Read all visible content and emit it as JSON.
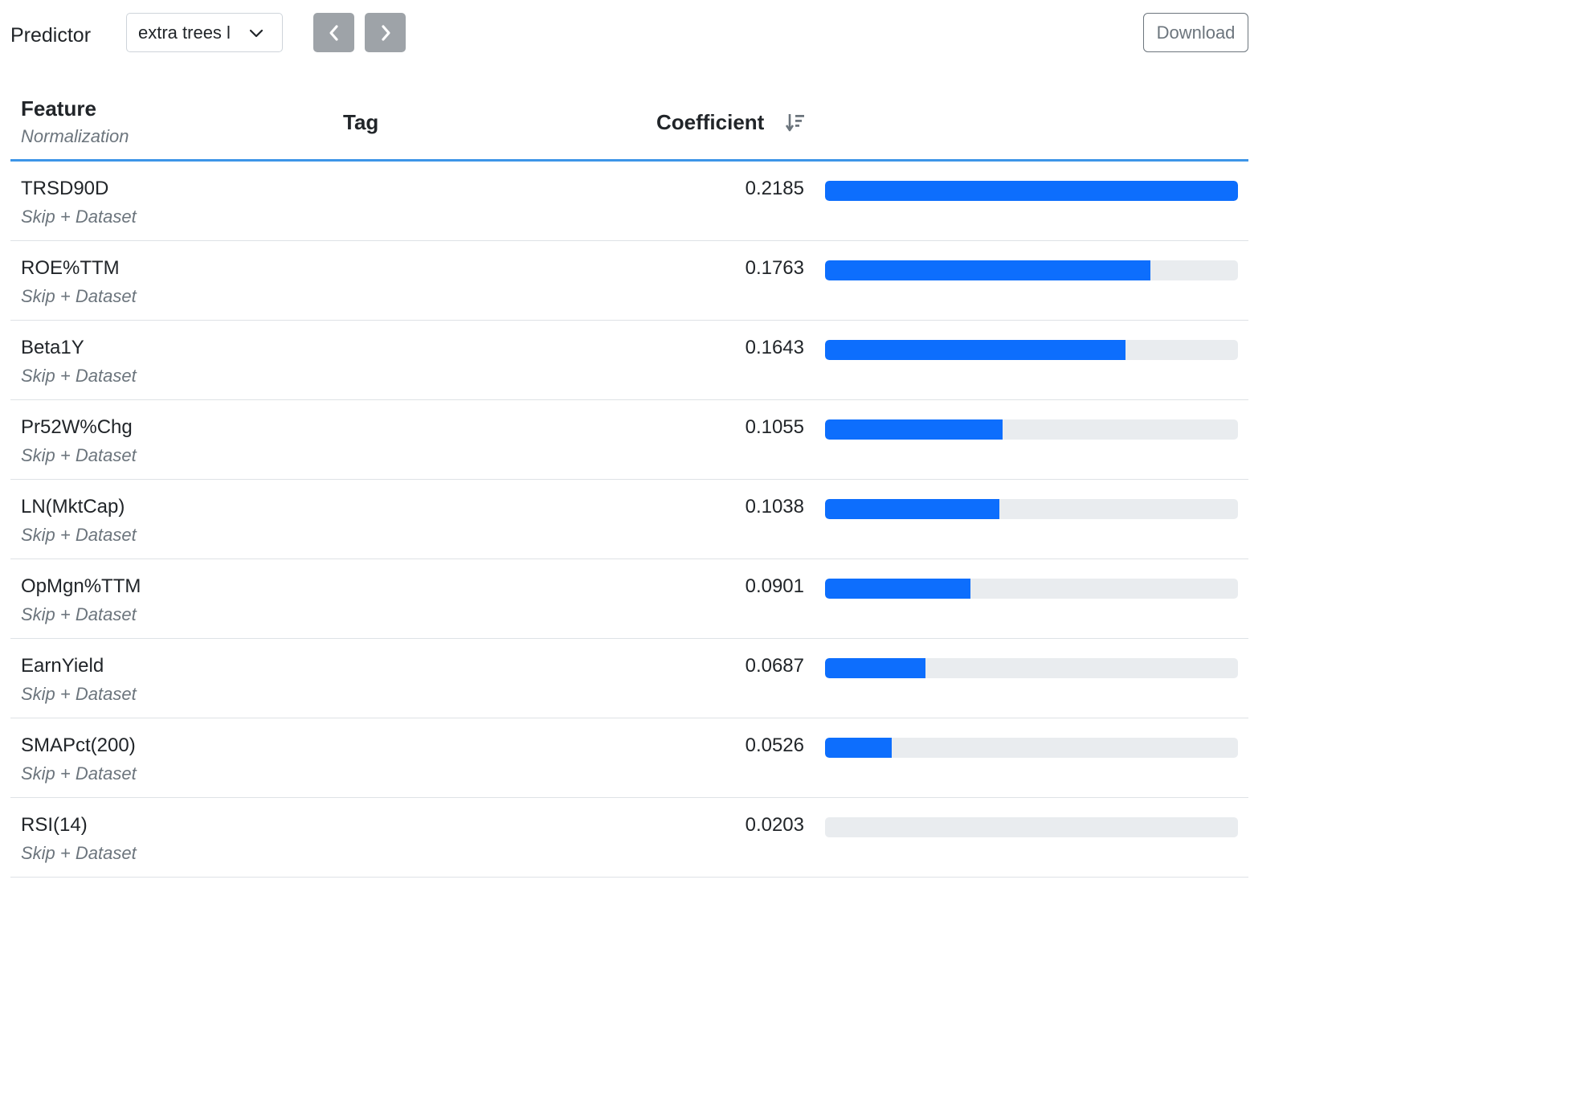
{
  "toolbar": {
    "predictor_label": "Predictor",
    "predictor_selected": "extra trees l",
    "prev_icon": "chevron-left-icon",
    "next_icon": "chevron-right-icon",
    "download_label": "Download"
  },
  "table": {
    "headers": {
      "feature": "Feature",
      "normalization": "Normalization",
      "tag": "Tag",
      "coefficient": "Coefficient",
      "sort_icon": "sort-descending-icon"
    },
    "rows": [
      {
        "feature": "TRSD90D",
        "normalization": "Skip + Dataset",
        "tag": "",
        "coefficient": "0.2185",
        "fill": 1.0
      },
      {
        "feature": "ROE%TTM",
        "normalization": "Skip + Dataset",
        "tag": "",
        "coefficient": "0.1763",
        "fill": 0.788
      },
      {
        "feature": "Beta1Y",
        "normalization": "Skip + Dataset",
        "tag": "",
        "coefficient": "0.1643",
        "fill": 0.728
      },
      {
        "feature": "Pr52W%Chg",
        "normalization": "Skip + Dataset",
        "tag": "",
        "coefficient": "0.1055",
        "fill": 0.43
      },
      {
        "feature": "LN(MktCap)",
        "normalization": "Skip + Dataset",
        "tag": "",
        "coefficient": "0.1038",
        "fill": 0.422
      },
      {
        "feature": "OpMgn%TTM",
        "normalization": "Skip + Dataset",
        "tag": "",
        "coefficient": "0.0901",
        "fill": 0.352
      },
      {
        "feature": "EarnYield",
        "normalization": "Skip + Dataset",
        "tag": "",
        "coefficient": "0.0687",
        "fill": 0.243
      },
      {
        "feature": "SMAPct(200)",
        "normalization": "Skip + Dataset",
        "tag": "",
        "coefficient": "0.0526",
        "fill": 0.162
      },
      {
        "feature": "RSI(14)",
        "normalization": "Skip + Dataset",
        "tag": "",
        "coefficient": "0.0203",
        "fill": 0.0
      }
    ]
  },
  "colors": {
    "bar_fill": "#0d6efd",
    "bar_track": "#e9ecef",
    "header_rule": "#3d95e8",
    "nav_button": "#9ea3a8"
  }
}
